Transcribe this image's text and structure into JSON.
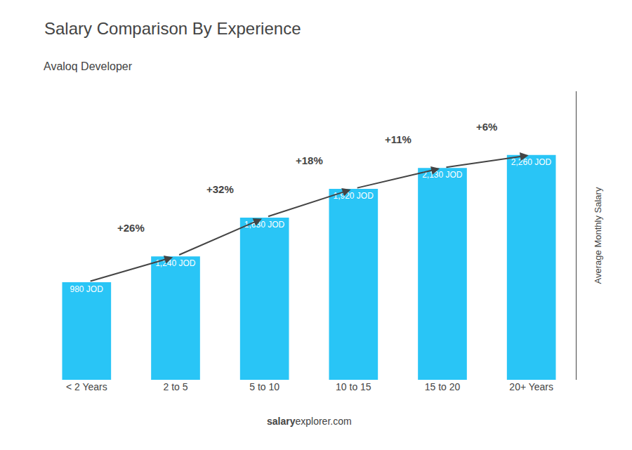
{
  "chart_data": {
    "type": "bar",
    "title": "Salary Comparison By Experience",
    "subtitle": "Avaloq Developer",
    "ylabel": "Average Monthly Salary",
    "footer": [
      "salary",
      "explorer.com"
    ],
    "categories": [
      "< 2 Years",
      "2 to 5",
      "5 to 10",
      "10 to 15",
      "15 to 20",
      "20+ Years"
    ],
    "values": [
      980,
      1240,
      1630,
      1920,
      2130,
      2260
    ],
    "value_labels": [
      "980 JOD",
      "1,240 JOD",
      "1,630 JOD",
      "1,920 JOD",
      "2,130 JOD",
      "2,260 JOD"
    ],
    "data_labels": true,
    "annotations": [
      "+26%",
      "+32%",
      "+18%",
      "+11%",
      "+6%"
    ],
    "color": "#29C5F6",
    "ylim": [
      0,
      2900
    ],
    "yticks": [],
    "tick_labels": "x",
    "grid": false
  }
}
